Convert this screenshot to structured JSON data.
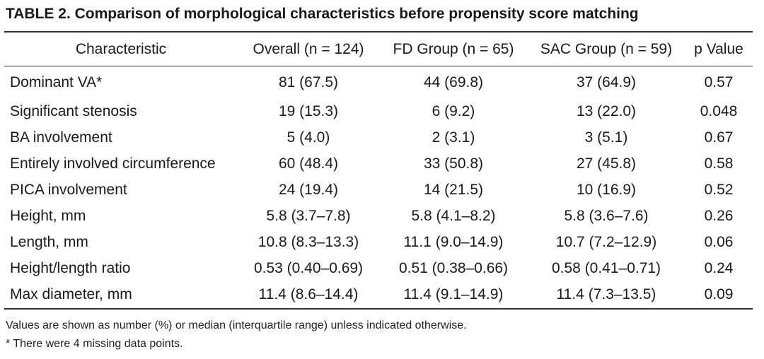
{
  "title": "TABLE 2. Comparison of morphological characteristics before propensity score matching",
  "columns": [
    "Characteristic",
    "Overall (n = 124)",
    "FD Group (n = 65)",
    "SAC Group (n = 59)",
    "p Value"
  ],
  "rows": [
    [
      "Dominant VA*",
      "81 (67.5)",
      "44 (69.8)",
      "37 (64.9)",
      "0.57"
    ],
    [
      "Significant stenosis",
      "19 (15.3)",
      "6 (9.2)",
      "13 (22.0)",
      "0.048"
    ],
    [
      "BA involvement",
      "5 (4.0)",
      "2 (3.1)",
      "3 (5.1)",
      "0.67"
    ],
    [
      "Entirely involved circumference",
      "60 (48.4)",
      "33 (50.8)",
      "27 (45.8)",
      "0.58"
    ],
    [
      "PICA involvement",
      "24 (19.4)",
      "14 (21.5)",
      "10 (16.9)",
      "0.52"
    ],
    [
      "Height, mm",
      "5.8 (3.7–7.8)",
      "5.8 (4.1–8.2)",
      "5.8 (3.6–7.6)",
      "0.26"
    ],
    [
      "Length, mm",
      "10.8 (8.3–13.3)",
      "11.1 (9.0–14.9)",
      "10.7 (7.2–12.9)",
      "0.06"
    ],
    [
      "Height/length ratio",
      "0.53 (0.40–0.69)",
      "0.51 (0.38–0.66)",
      "0.58 (0.41–0.71)",
      "0.24"
    ],
    [
      "Max diameter, mm",
      "11.4 (8.6–14.4)",
      "11.4 (9.1–14.9)",
      "11.4 (7.3–13.5)",
      "0.09"
    ]
  ],
  "footnotes": [
    "Values are shown as number (%) or median (interquartile range) unless indicated otherwise.",
    "* There were 4 missing data points."
  ]
}
